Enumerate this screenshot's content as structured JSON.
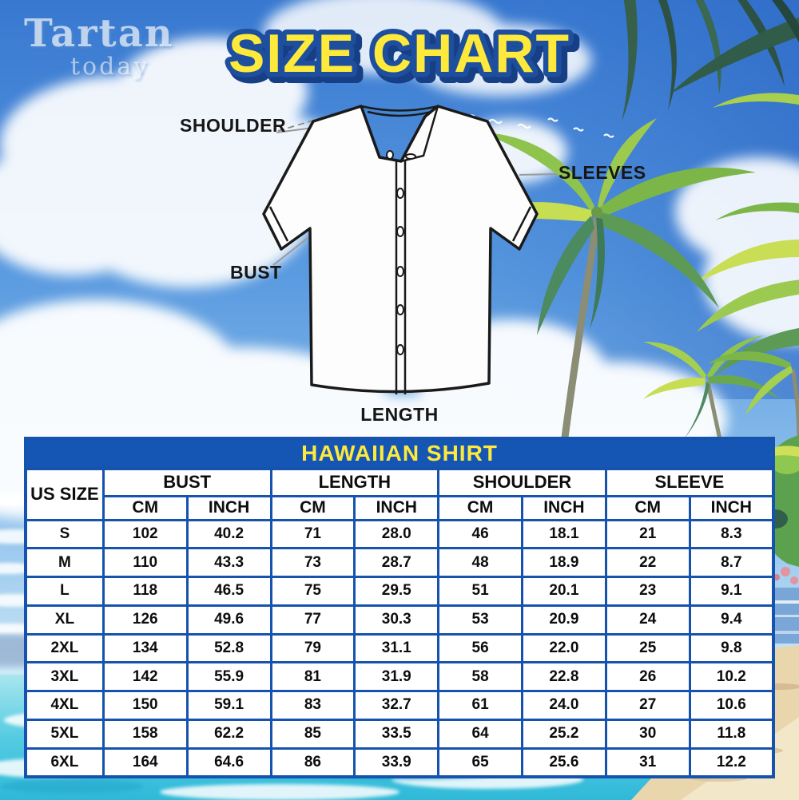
{
  "brand": {
    "name": "Tartan",
    "sub": "today"
  },
  "title": "SIZE CHART",
  "diagram": {
    "shoulder_label": "SHOULDER",
    "sleeves_label": "SLEEVES",
    "bust_label": "BUST",
    "length_label": "LENGTH"
  },
  "colors": {
    "table_border_blue": "#1553ae",
    "header_band_blue": "#1556b5",
    "title_yellow": "#ffe93a",
    "title_outline_blue": "#1e4f9f",
    "sky_blue": "#3878d0",
    "water_turquoise": "#2fb9d8",
    "sand": "#e9d6ad"
  },
  "size_table": {
    "caption": "HAWAIIAN SHIRT",
    "size_col_header": "US SIZE",
    "col_groups": [
      "BUST",
      "LENGTH",
      "SHOULDER",
      "SLEEVE"
    ],
    "unit_headers": [
      "CM",
      "INCH",
      "CM",
      "INCH",
      "CM",
      "INCH",
      "CM",
      "INCH"
    ],
    "rows": [
      [
        "S",
        "102",
        "40.2",
        "71",
        "28.0",
        "46",
        "18.1",
        "21",
        "8.3"
      ],
      [
        "M",
        "110",
        "43.3",
        "73",
        "28.7",
        "48",
        "18.9",
        "22",
        "8.7"
      ],
      [
        "L",
        "118",
        "46.5",
        "75",
        "29.5",
        "51",
        "20.1",
        "23",
        "9.1"
      ],
      [
        "XL",
        "126",
        "49.6",
        "77",
        "30.3",
        "53",
        "20.9",
        "24",
        "9.4"
      ],
      [
        "2XL",
        "134",
        "52.8",
        "79",
        "31.1",
        "56",
        "22.0",
        "25",
        "9.8"
      ],
      [
        "3XL",
        "142",
        "55.9",
        "81",
        "31.9",
        "58",
        "22.8",
        "26",
        "10.2"
      ],
      [
        "4XL",
        "150",
        "59.1",
        "83",
        "32.7",
        "61",
        "24.0",
        "27",
        "10.6"
      ],
      [
        "5XL",
        "158",
        "62.2",
        "85",
        "33.5",
        "64",
        "25.2",
        "30",
        "11.8"
      ],
      [
        "6XL",
        "164",
        "64.6",
        "86",
        "33.9",
        "65",
        "25.6",
        "31",
        "12.2"
      ]
    ]
  },
  "chart_data": {
    "type": "table",
    "title": "HAWAIIAN SHIRT",
    "columns": [
      "US SIZE",
      "BUST CM",
      "BUST INCH",
      "LENGTH CM",
      "LENGTH INCH",
      "SHOULDER CM",
      "SHOULDER INCH",
      "SLEEVE CM",
      "SLEEVE INCH"
    ],
    "rows": [
      [
        "S",
        "102",
        "40.2",
        "71",
        "28.0",
        "46",
        "18.1",
        "21",
        "8.3"
      ],
      [
        "M",
        "110",
        "43.3",
        "73",
        "28.7",
        "48",
        "18.9",
        "22",
        "8.7"
      ],
      [
        "L",
        "118",
        "46.5",
        "75",
        "29.5",
        "51",
        "20.1",
        "23",
        "9.1"
      ],
      [
        "XL",
        "126",
        "49.6",
        "77",
        "30.3",
        "53",
        "20.9",
        "24",
        "9.4"
      ],
      [
        "2XL",
        "134",
        "52.8",
        "79",
        "31.1",
        "56",
        "22.0",
        "25",
        "9.8"
      ],
      [
        "3XL",
        "142",
        "55.9",
        "81",
        "31.9",
        "58",
        "22.8",
        "26",
        "10.2"
      ],
      [
        "4XL",
        "150",
        "59.1",
        "83",
        "32.7",
        "61",
        "24.0",
        "27",
        "10.6"
      ],
      [
        "5XL",
        "158",
        "62.2",
        "85",
        "33.5",
        "64",
        "25.2",
        "30",
        "11.8"
      ],
      [
        "6XL",
        "164",
        "64.6",
        "86",
        "33.9",
        "65",
        "25.6",
        "31",
        "12.2"
      ]
    ]
  }
}
